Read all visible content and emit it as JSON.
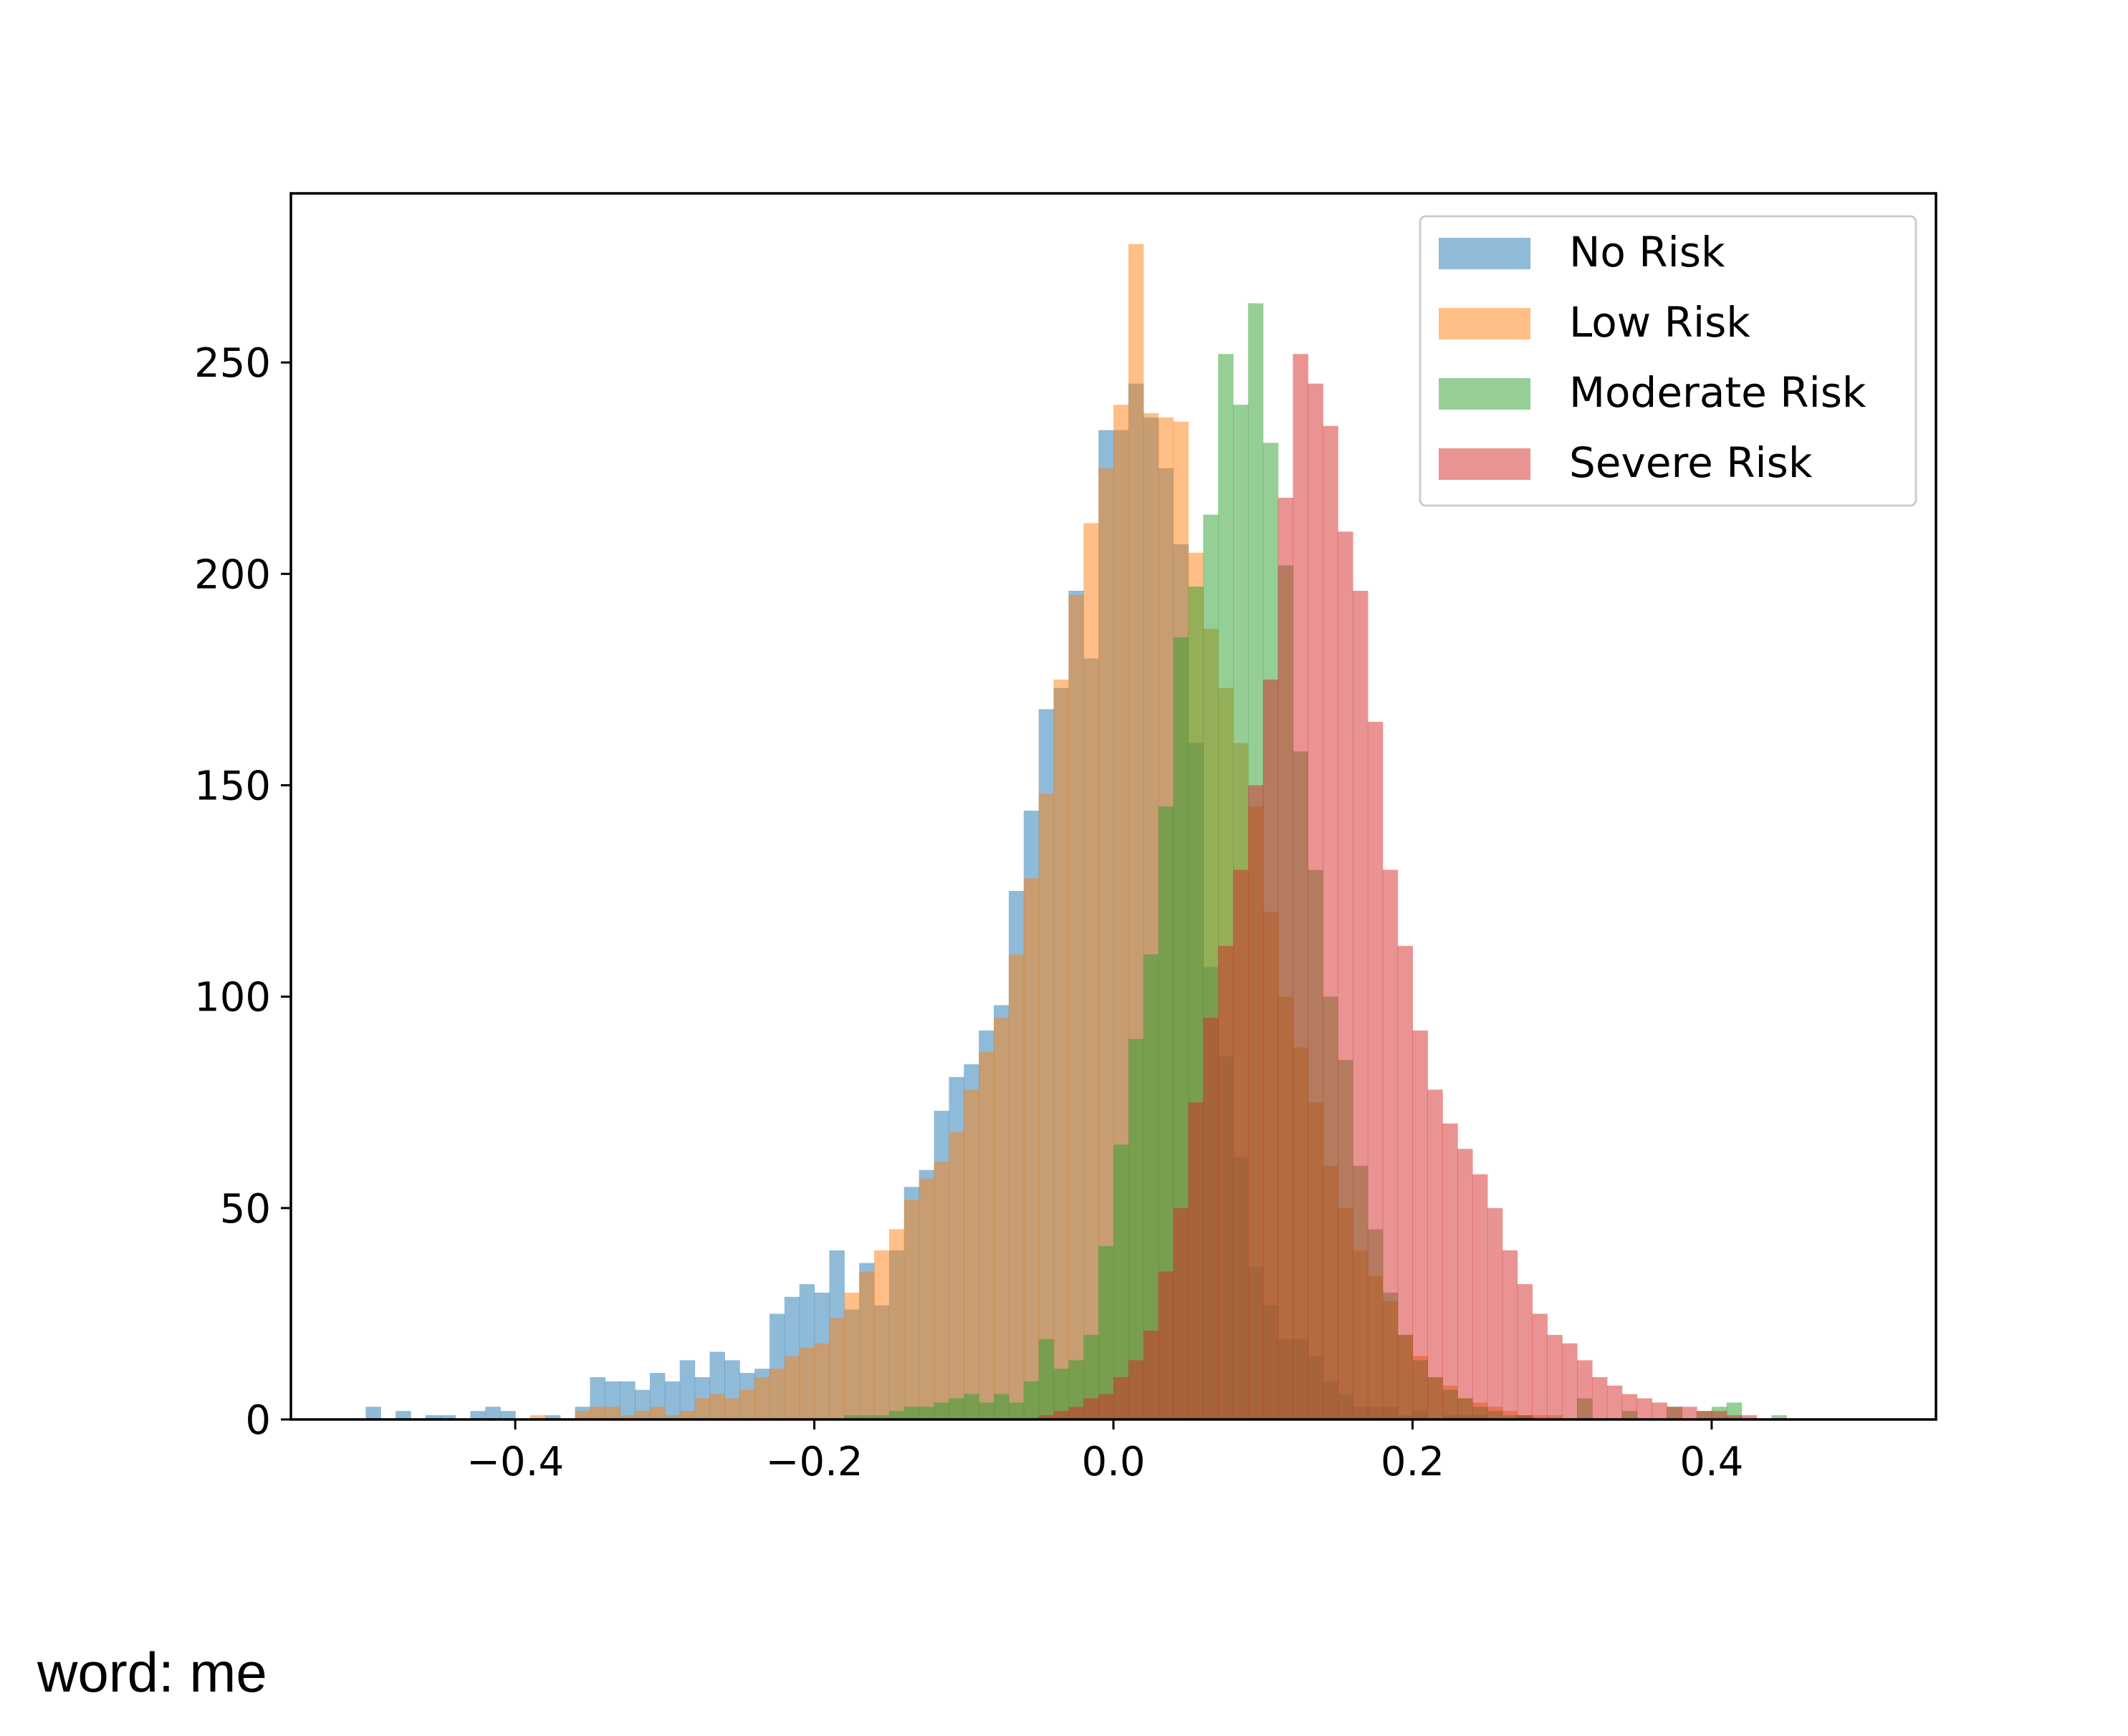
{
  "caption": "word: me",
  "chart_data": {
    "type": "histogram",
    "title": "",
    "xlabel": "",
    "ylabel": "",
    "xlim": [
      -0.55,
      0.55
    ],
    "ylim": [
      0,
      290
    ],
    "xticks": [
      -0.4,
      -0.2,
      0.0,
      0.2,
      0.4
    ],
    "xtick_labels": [
      "−0.4",
      "−0.2",
      "0.0",
      "0.2",
      "0.4"
    ],
    "yticks": [
      0,
      50,
      100,
      150,
      200,
      250
    ],
    "ytick_labels": [
      "0",
      "50",
      "100",
      "150",
      "200",
      "250"
    ],
    "grid": false,
    "legend_position": "top-right",
    "bar_opacity": 0.5,
    "series": [
      {
        "name": "No Risk",
        "color": "#1f77b4",
        "bin_start": -0.5,
        "bin_width": 0.01,
        "counts": [
          3,
          0,
          2,
          0,
          1,
          1,
          0,
          2,
          3,
          2,
          0,
          0,
          1,
          0,
          3,
          10,
          9,
          9,
          7,
          11,
          9,
          14,
          10,
          16,
          14,
          11,
          12,
          25,
          29,
          32,
          30,
          40,
          26,
          37,
          27,
          40,
          55,
          59,
          73,
          81,
          84,
          92,
          98,
          125,
          144,
          168,
          173,
          196,
          180,
          234,
          234,
          245,
          237,
          225,
          207,
          160,
          107,
          86,
          62,
          36,
          27,
          19,
          19,
          15,
          9,
          6,
          3,
          3,
          3,
          1,
          2,
          0,
          1,
          1,
          1,
          0,
          0,
          1,
          0,
          0,
          0,
          0,
          0,
          0,
          0,
          0,
          0,
          0,
          0,
          0,
          0,
          0,
          0,
          0,
          0,
          0,
          0,
          0,
          0,
          0
        ]
      },
      {
        "name": "Low Risk",
        "color": "#ff7f0e",
        "bin_start": -0.5,
        "bin_width": 0.01,
        "counts": [
          0,
          0,
          0,
          0,
          0,
          0,
          0,
          0,
          0,
          0,
          0,
          1,
          0,
          0,
          2,
          3,
          3,
          1,
          2,
          3,
          1,
          2,
          5,
          6,
          5,
          7,
          10,
          12,
          15,
          17,
          18,
          24,
          30,
          35,
          40,
          45,
          52,
          57,
          61,
          68,
          78,
          87,
          95,
          110,
          128,
          148,
          175,
          195,
          212,
          225,
          240,
          278,
          238,
          237,
          236,
          205,
          187,
          173,
          160,
          145,
          120,
          100,
          88,
          75,
          60,
          50,
          40,
          34,
          28,
          20,
          15,
          10,
          8,
          5,
          4,
          3,
          2,
          1,
          1,
          1,
          0,
          0,
          0,
          0,
          0,
          0,
          0,
          0,
          0,
          0,
          0,
          0,
          0,
          0,
          0,
          0,
          0,
          0,
          0,
          0
        ]
      },
      {
        "name": "Moderate Risk",
        "color": "#2ca02c",
        "bin_start": -0.5,
        "bin_width": 0.01,
        "counts": [
          0,
          0,
          0,
          0,
          0,
          0,
          0,
          0,
          0,
          0,
          0,
          0,
          0,
          0,
          0,
          0,
          0,
          0,
          0,
          0,
          0,
          0,
          0,
          0,
          0,
          0,
          0,
          0,
          0,
          0,
          0,
          0,
          1,
          1,
          1,
          2,
          3,
          3,
          4,
          5,
          6,
          4,
          6,
          4,
          9,
          19,
          12,
          14,
          20,
          41,
          65,
          90,
          110,
          145,
          185,
          197,
          214,
          252,
          240,
          264,
          231,
          202,
          158,
          130,
          100,
          85,
          60,
          45,
          30,
          20,
          14,
          10,
          7,
          5,
          3,
          2,
          1,
          1,
          0,
          0,
          0,
          5,
          0,
          0,
          2,
          0,
          0,
          3,
          0,
          2,
          3,
          4,
          0,
          0,
          1,
          0,
          0,
          0,
          0,
          0
        ]
      },
      {
        "name": "Severe Risk",
        "color": "#d62728",
        "bin_start": -0.5,
        "bin_width": 0.01,
        "counts": [
          0,
          0,
          0,
          0,
          0,
          0,
          0,
          0,
          0,
          0,
          0,
          0,
          0,
          0,
          0,
          0,
          0,
          0,
          0,
          0,
          0,
          0,
          0,
          0,
          0,
          0,
          0,
          0,
          0,
          0,
          0,
          0,
          0,
          0,
          0,
          0,
          0,
          0,
          0,
          0,
          0,
          0,
          0,
          0,
          0,
          1,
          2,
          3,
          5,
          6,
          10,
          14,
          21,
          35,
          50,
          75,
          95,
          112,
          130,
          150,
          175,
          218,
          252,
          245,
          235,
          210,
          196,
          165,
          130,
          112,
          92,
          78,
          70,
          64,
          58,
          50,
          40,
          32,
          25,
          20,
          18,
          14,
          10,
          8,
          6,
          5,
          4,
          3,
          3,
          2,
          2,
          1,
          1,
          0,
          0,
          0,
          0,
          0,
          0,
          0
        ]
      }
    ]
  }
}
